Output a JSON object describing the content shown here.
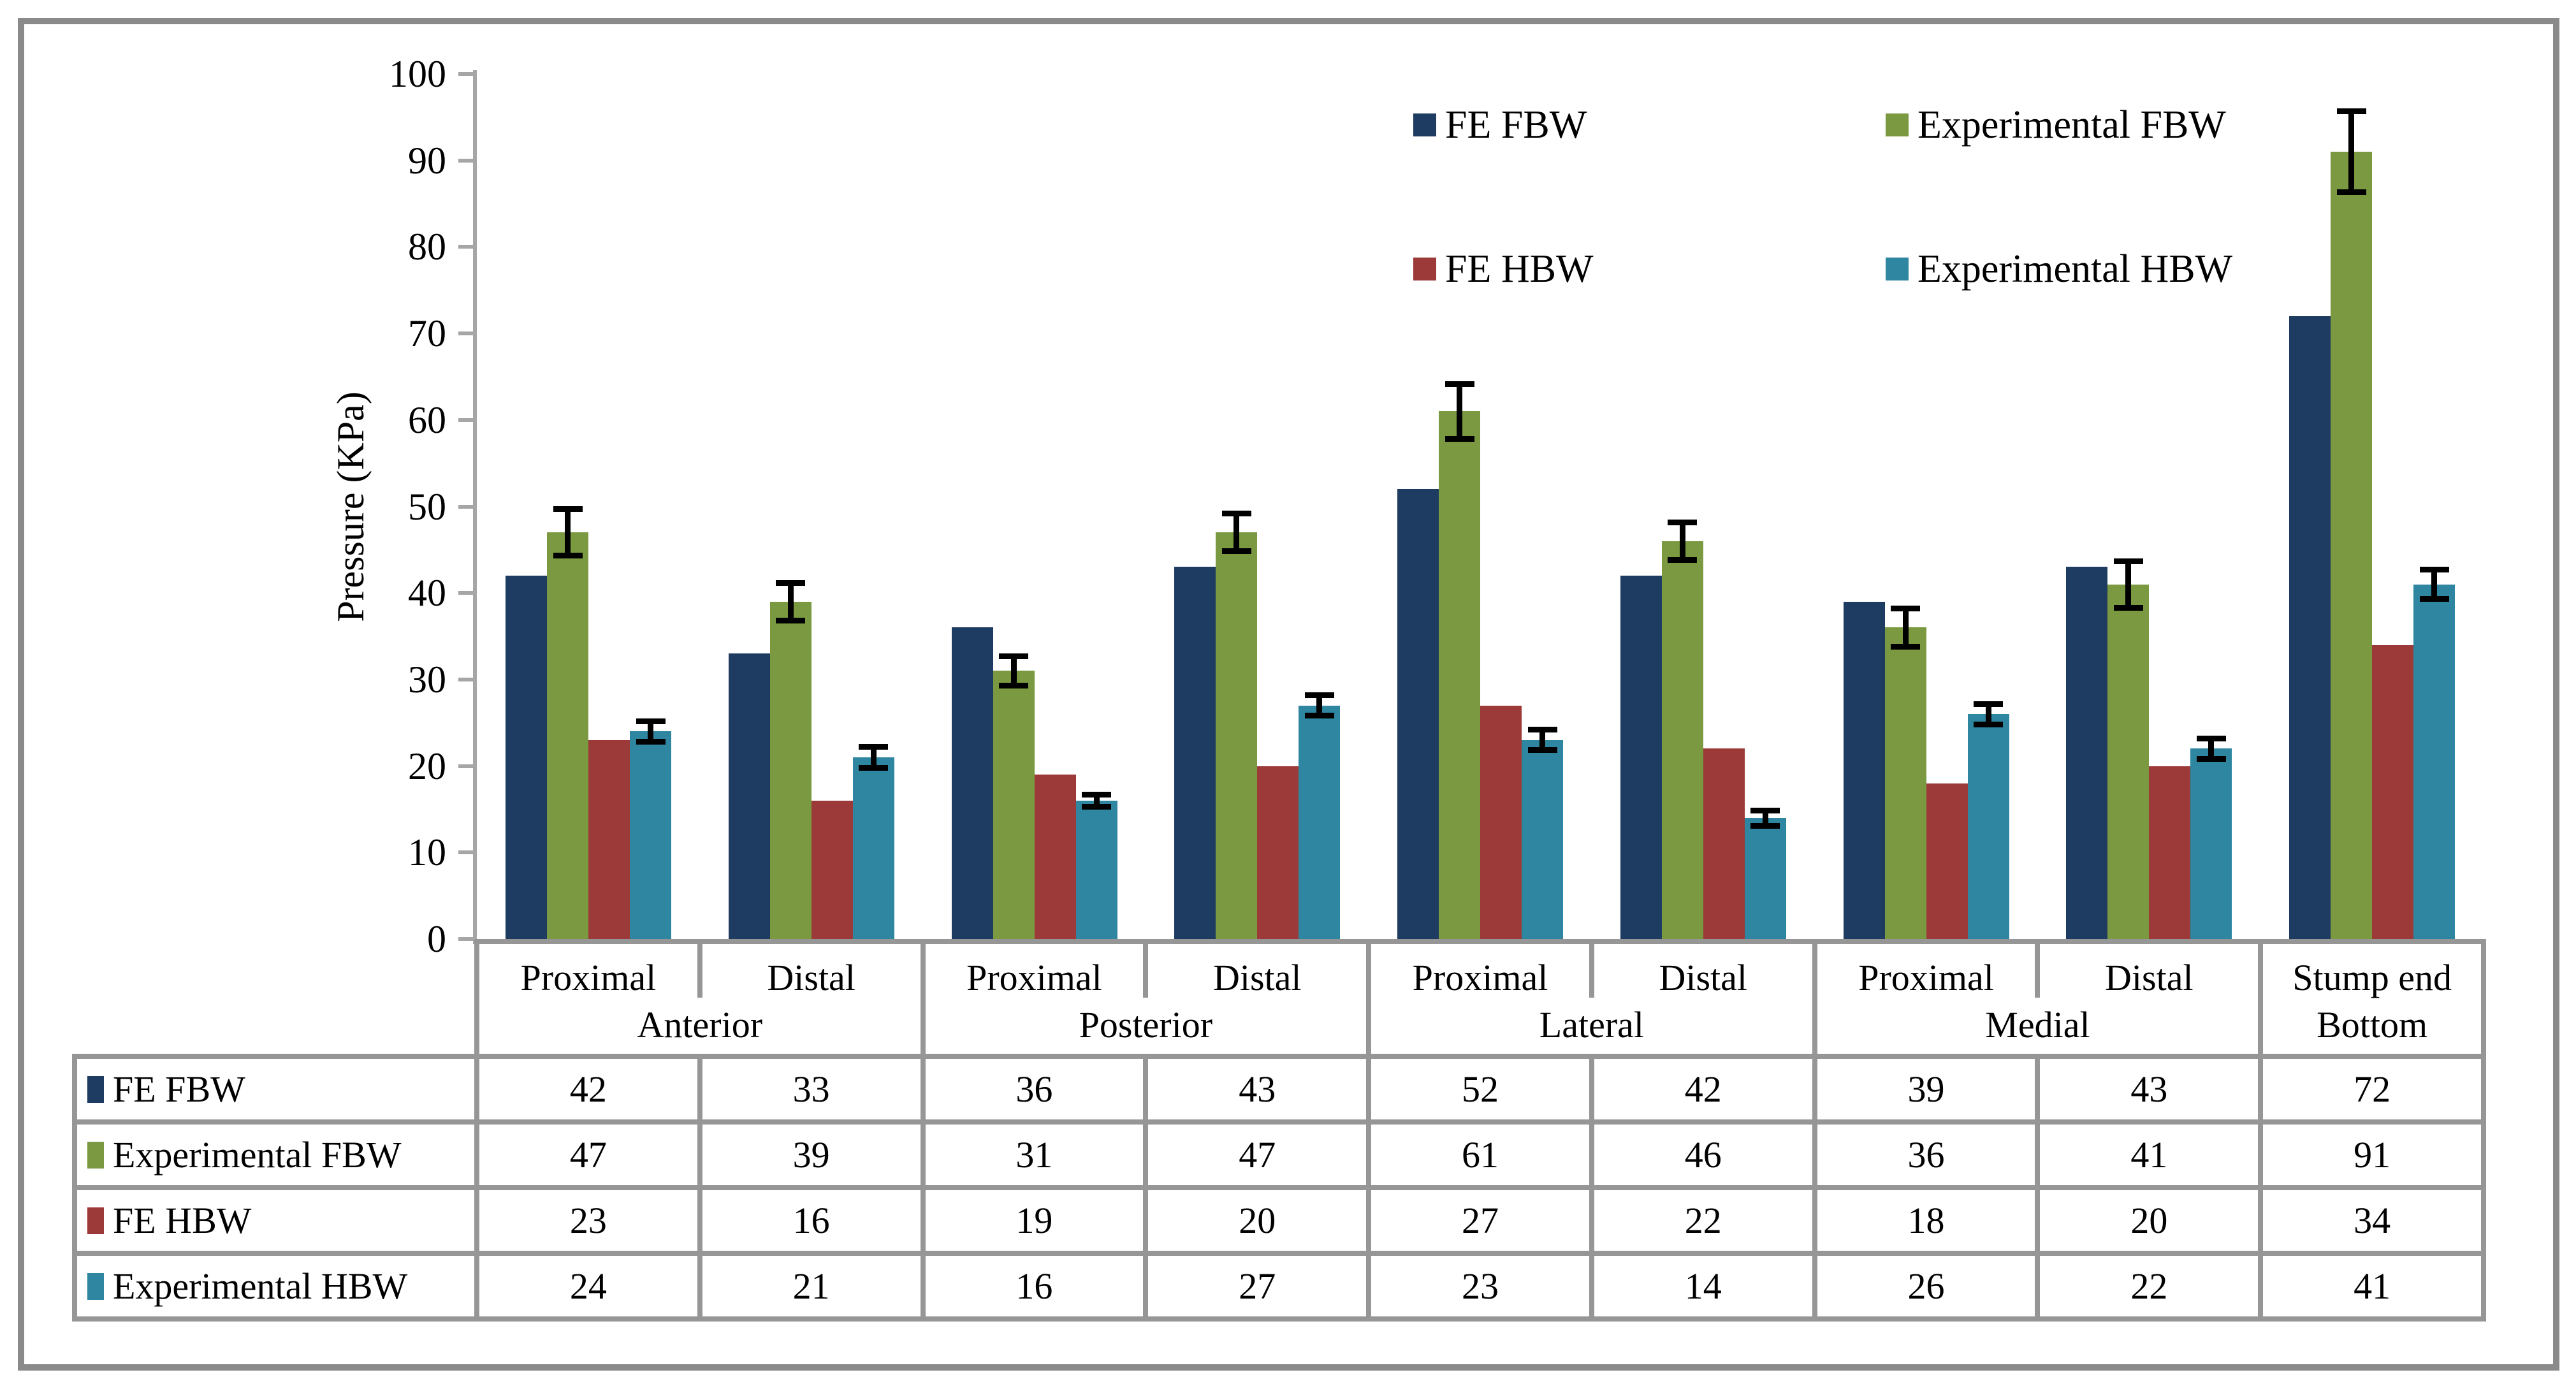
{
  "figure": {
    "background": "#FFFFFF",
    "border_color": "#8A8A8A"
  },
  "colors": {
    "axis_gray": "#A6A6A6",
    "table_border_gray": "#969696",
    "error_bar_black": "#000000"
  },
  "y_axis": {
    "title": "Pressure (KPa)",
    "tick_labels": [
      "0",
      "10",
      "20",
      "30",
      "40",
      "50",
      "60",
      "70",
      "80",
      "90",
      "100"
    ]
  },
  "chart_data": {
    "type": "bar",
    "title": "",
    "xlabel": "",
    "ylabel": "Pressure (KPa)",
    "ylim": [
      0,
      100
    ],
    "y_tick_step": 10,
    "grid": false,
    "legend_position": "top-right, 2 columns x 2 rows",
    "categories": [
      "Proximal",
      "Distal",
      "Proximal",
      "Distal",
      "Proximal",
      "Distal",
      "Proximal",
      "Distal",
      "Stump end"
    ],
    "groups": [
      {
        "label": "Anterior",
        "span": 2
      },
      {
        "label": "Posterior",
        "span": 2
      },
      {
        "label": "Lateral",
        "span": 2
      },
      {
        "label": "Medial",
        "span": 2
      },
      {
        "label": "Bottom",
        "span": 1
      }
    ],
    "series": [
      {
        "name": "FE FBW",
        "color": "#1E3C61",
        "values": [
          42,
          33,
          36,
          43,
          52,
          42,
          39,
          43,
          72
        ],
        "errors": null
      },
      {
        "name": "Experimental FBW",
        "color": "#7A9941",
        "values": [
          47,
          39,
          31,
          47,
          61,
          46,
          36,
          41,
          91
        ],
        "errors": [
          2.5,
          2,
          1.5,
          2,
          3,
          2,
          2,
          2.5,
          4.5
        ]
      },
      {
        "name": "FE HBW",
        "color": "#9C3A39",
        "values": [
          23,
          16,
          19,
          20,
          27,
          22,
          18,
          20,
          34
        ],
        "errors": null
      },
      {
        "name": "Experimental HBW",
        "color": "#2E86A0",
        "values": [
          24,
          21,
          16,
          27,
          23,
          14,
          26,
          22,
          41
        ],
        "errors": [
          1,
          1,
          0.5,
          1,
          1,
          0.7,
          1,
          1,
          1.5
        ]
      }
    ]
  },
  "data_table": {
    "rows": [
      {
        "label": "FE FBW",
        "color": "#1E3C61",
        "values": [
          "42",
          "33",
          "36",
          "43",
          "52",
          "42",
          "39",
          "43",
          "72"
        ]
      },
      {
        "label": "Experimental FBW",
        "color": "#7A9941",
        "values": [
          "47",
          "39",
          "31",
          "47",
          "61",
          "46",
          "36",
          "41",
          "91"
        ]
      },
      {
        "label": "FE HBW",
        "color": "#9C3A39",
        "values": [
          "23",
          "16",
          "19",
          "20",
          "27",
          "22",
          "18",
          "20",
          "34"
        ]
      },
      {
        "label": "Experimental HBW",
        "color": "#2E86A0",
        "values": [
          "24",
          "21",
          "16",
          "27",
          "23",
          "14",
          "26",
          "22",
          "41"
        ]
      }
    ]
  }
}
